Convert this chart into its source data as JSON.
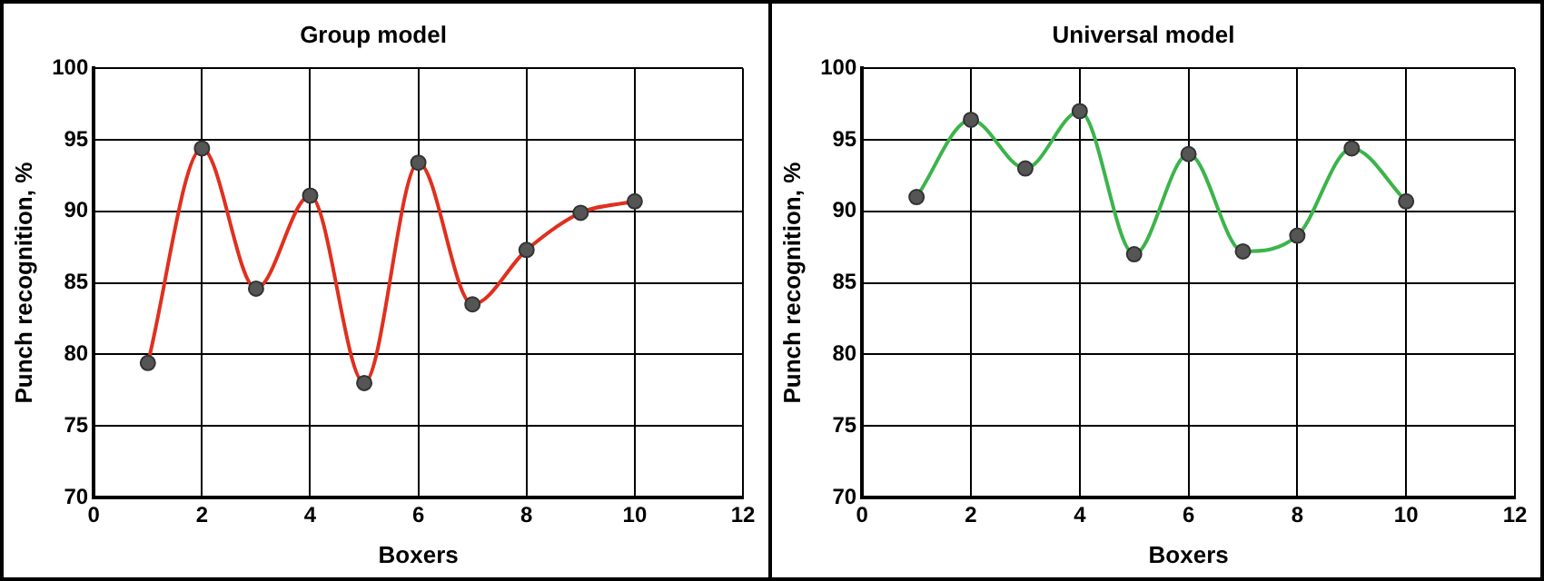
{
  "chart_data": [
    {
      "type": "line",
      "title": "Group model",
      "xlabel": "Boxers",
      "ylabel": "Punch recognition, %",
      "xlim": [
        0,
        12
      ],
      "xticks": [
        0,
        2,
        4,
        6,
        8,
        10,
        12
      ],
      "ylim": [
        70,
        100
      ],
      "yticks": [
        70,
        75,
        80,
        85,
        90,
        95,
        100
      ],
      "grid": true,
      "legend": false,
      "marker": "circle",
      "line_style": "solid",
      "series": [
        {
          "color": "#e0301e",
          "x": [
            1,
            2,
            3,
            4,
            5,
            6,
            7,
            8,
            9,
            10
          ],
          "values": [
            79.4,
            94.4,
            84.6,
            91.1,
            78.0,
            93.4,
            83.5,
            87.3,
            89.9,
            90.7
          ]
        }
      ]
    },
    {
      "type": "line",
      "title": "Universal model",
      "xlabel": "Boxers",
      "ylabel": "Punch recognition, %",
      "xlim": [
        0,
        12
      ],
      "xticks": [
        0,
        2,
        4,
        6,
        8,
        10,
        12
      ],
      "ylim": [
        70,
        100
      ],
      "yticks": [
        70,
        75,
        80,
        85,
        90,
        95,
        100
      ],
      "grid": true,
      "legend": false,
      "marker": "circle",
      "line_style": "solid",
      "series": [
        {
          "color": "#3cb44b",
          "x": [
            1,
            2,
            3,
            4,
            5,
            6,
            7,
            8,
            9,
            10
          ],
          "values": [
            91.0,
            96.4,
            93.0,
            97.0,
            87.0,
            94.0,
            87.2,
            88.3,
            94.4,
            90.7
          ]
        }
      ]
    }
  ]
}
